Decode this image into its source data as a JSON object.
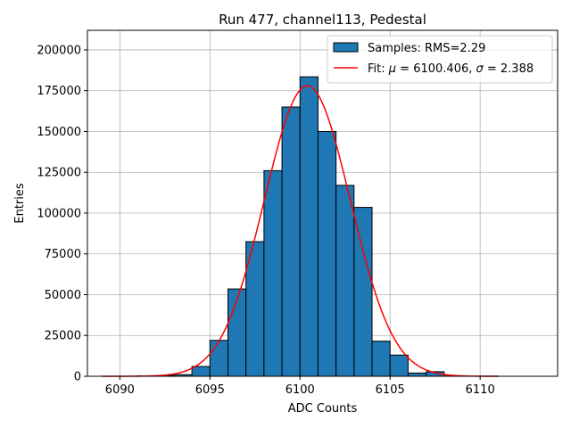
{
  "chart_data": {
    "type": "bar",
    "title": "Run 477, channel113, Pedestal",
    "xlabel": "ADC Counts",
    "ylabel": "Entries",
    "xlim": [
      6088.2,
      6114.3
    ],
    "ylim": [
      0,
      212000
    ],
    "xticks": [
      6090,
      6095,
      6100,
      6105,
      6110
    ],
    "yticks": [
      0,
      25000,
      50000,
      75000,
      100000,
      125000,
      150000,
      175000,
      200000
    ],
    "grid": true,
    "legend_position": "top-right",
    "bin_width": 1,
    "bins": [
      {
        "x0": 6091,
        "value": 300
      },
      {
        "x0": 6092,
        "value": 500
      },
      {
        "x0": 6093,
        "value": 1000
      },
      {
        "x0": 6094,
        "value": 6000
      },
      {
        "x0": 6095,
        "value": 22000
      },
      {
        "x0": 6096,
        "value": 53500
      },
      {
        "x0": 6097,
        "value": 82500
      },
      {
        "x0": 6098,
        "value": 126000
      },
      {
        "x0": 6099,
        "value": 165000
      },
      {
        "x0": 6100,
        "value": 183500
      },
      {
        "x0": 6101,
        "value": 150000
      },
      {
        "x0": 6102,
        "value": 117000
      },
      {
        "x0": 6103,
        "value": 103500
      },
      {
        "x0": 6104,
        "value": 21500
      },
      {
        "x0": 6105,
        "value": 13000
      },
      {
        "x0": 6106,
        "value": 2000
      },
      {
        "x0": 6107,
        "value": 2800
      },
      {
        "x0": 6108,
        "value": 200
      },
      {
        "x0": 6110,
        "value": 100
      }
    ],
    "fit": {
      "mu": 6100.406,
      "sigma": 2.388,
      "peak": 178000,
      "x_range": [
        6089,
        6111
      ]
    },
    "legend": {
      "samples_label": "Samples: RMS=2.29",
      "fit_label_prefix": "Fit: ",
      "fit_mu_symbol": "μ",
      "fit_mu_text": " = 6100.406, ",
      "fit_sigma_symbol": "σ",
      "fit_sigma_text": " = 2.388"
    },
    "colors": {
      "bar_fill": "#1f77b4",
      "bar_edge": "#000000",
      "fit_line": "#ff0000",
      "grid": "#b0b0b0"
    }
  }
}
